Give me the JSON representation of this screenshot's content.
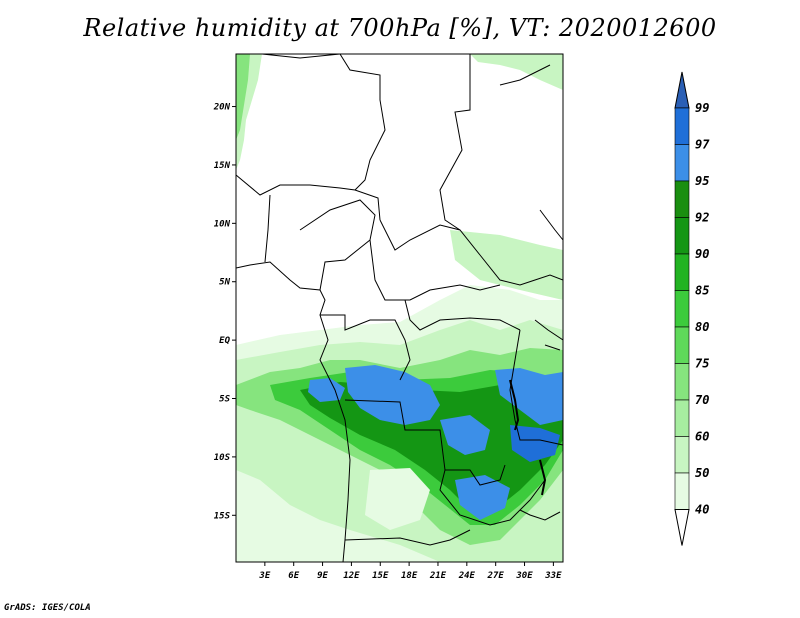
{
  "title": "Relative humidity at 700hPa [%], VT: 2020012600",
  "footer": "GrADS: IGES/COLA",
  "map": {
    "lon_range": [
      0,
      34
    ],
    "lat_range": [
      -19,
      24.5
    ],
    "lat_ticks": [
      {
        "lat": 20,
        "label": "20N"
      },
      {
        "lat": 15,
        "label": "15N"
      },
      {
        "lat": 10,
        "label": "10N"
      },
      {
        "lat": 5,
        "label": "5N"
      },
      {
        "lat": 0,
        "label": "EQ"
      },
      {
        "lat": -5,
        "label": "5S"
      },
      {
        "lat": -10,
        "label": "10S"
      },
      {
        "lat": -15,
        "label": "15S"
      }
    ],
    "lon_ticks": [
      {
        "lon": 3,
        "label": "3E"
      },
      {
        "lon": 6,
        "label": "6E"
      },
      {
        "lon": 9,
        "label": "9E"
      },
      {
        "lon": 12,
        "label": "12E"
      },
      {
        "lon": 15,
        "label": "15E"
      },
      {
        "lon": 18,
        "label": "18E"
      },
      {
        "lon": 21,
        "label": "21E"
      },
      {
        "lon": 24,
        "label": "24E"
      },
      {
        "lon": 27,
        "label": "27E"
      },
      {
        "lon": 30,
        "label": "30E"
      },
      {
        "lon": 33,
        "label": "33E"
      }
    ]
  },
  "colorbar": {
    "levels": [
      "40",
      "50",
      "60",
      "70",
      "75",
      "80",
      "85",
      "90",
      "92",
      "95",
      "97",
      "99"
    ],
    "colors": [
      "#ffffff",
      "#e6fbe3",
      "#c8f5c2",
      "#a7eda0",
      "#86e47e",
      "#5fd95a",
      "#3ccb3c",
      "#22b322",
      "#149614",
      "#1a8e10",
      "#3c8fe8",
      "#1f6fd8",
      "#2a5fb5"
    ]
  }
}
